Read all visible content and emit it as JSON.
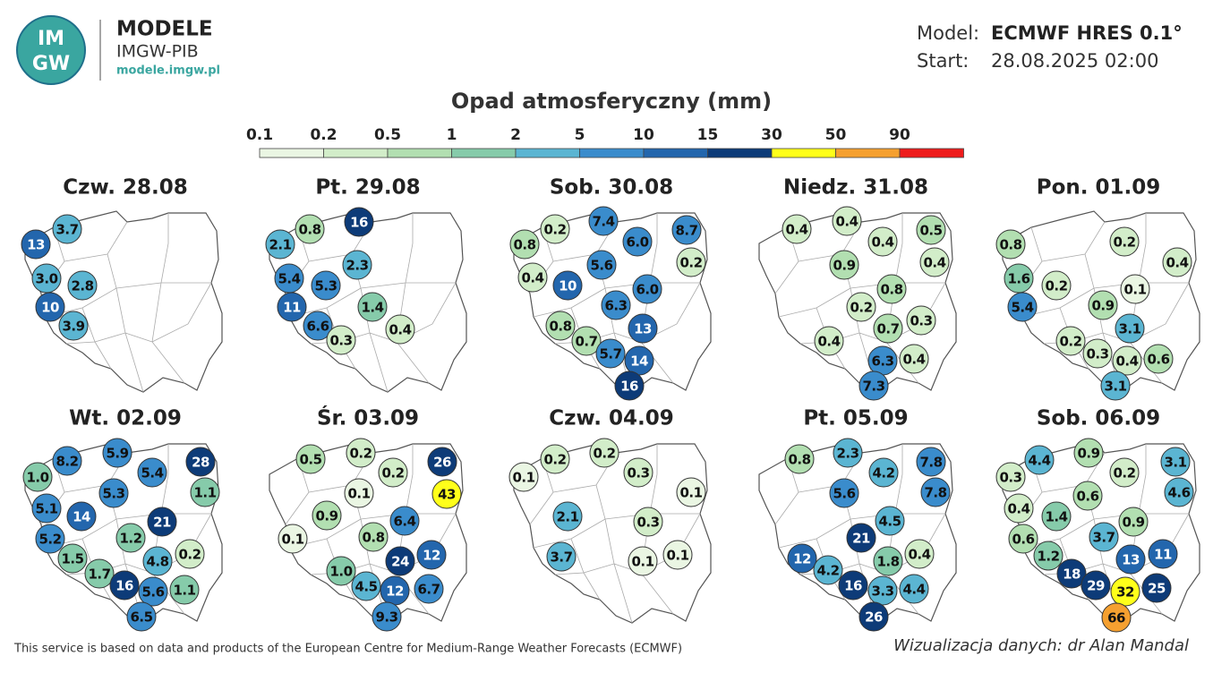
{
  "header": {
    "logo_text": [
      "IM",
      "GW"
    ],
    "brand": "MODELE",
    "org": "IMGW-PIB",
    "url": "modele.imgw.pl"
  },
  "model": {
    "model_label": "Model:",
    "model": "ECMWF HRES 0.1°",
    "start_label": "Start:",
    "start": "28.08.2025 02:00"
  },
  "title": "Opad atmosferyczny (mm)",
  "legend": {
    "ticks": [
      0.1,
      0.2,
      0.5,
      1,
      2,
      5,
      10,
      15,
      30,
      50,
      90
    ],
    "colors": [
      "#eaf6e3",
      "#d2edc9",
      "#b2dfb1",
      "#86cbaa",
      "#5bb5d2",
      "#3a8ccc",
      "#2366ad",
      "#0d3b78",
      "#ffff1a",
      "#f5a030",
      "#ee1c1c"
    ]
  },
  "panels": [
    {
      "title": "Czw. 28.08",
      "values": [
        13,
        3.7,
        3,
        2.8,
        10,
        3.9
      ],
      "value_labels": [
        "13",
        "3.7",
        "3.0",
        "2.8",
        "10",
        "3.9"
      ]
    },
    {
      "title": "Pt. 29.08",
      "values": [
        0.8,
        16,
        2.1,
        5.4,
        2.3,
        5.3,
        11,
        1.4,
        6.6,
        0.3,
        0.4
      ],
      "value_labels": [
        "0.8",
        "16",
        "2.1",
        "5.4",
        "2.3",
        "5.3",
        "11",
        "1.4",
        "6.6",
        "0.3",
        "0.4"
      ]
    },
    {
      "title": "Sob. 30.08",
      "values": [
        0.2,
        7.4,
        8.7,
        0.8,
        6,
        5.6,
        0.2,
        0.4,
        10,
        6,
        6.3,
        13,
        0.8,
        0.7,
        5.7,
        14,
        16
      ],
      "value_labels": [
        "0.2",
        "7.4",
        "8.7",
        "0.8",
        "6.0",
        "5.6",
        "0.2",
        "0.4",
        "10",
        "6.0",
        "6.3",
        "13",
        "0.8",
        "0.7",
        "5.7",
        "14",
        "16"
      ]
    },
    {
      "title": "Niedz. 31.08",
      "values": [
        0.4,
        0.4,
        0.5,
        0.4,
        0.4,
        0.9,
        0.8,
        0.2,
        0.7,
        0.3,
        0.4,
        6.3,
        0.4,
        7.3
      ],
      "value_labels": [
        "0.4",
        "0.4",
        "0.5",
        "0.4",
        "0.4",
        "0.9",
        "0.8",
        "0.2",
        "0.7",
        "0.3",
        "0.4",
        "6.3",
        "0.4",
        "7.3"
      ]
    },
    {
      "title": "Pon. 01.09",
      "values": [
        0.8,
        0.2,
        0.4,
        1.6,
        0.2,
        0.1,
        5.4,
        0.9,
        3.1,
        0.2,
        0.3,
        0.4,
        0.6,
        3.1
      ],
      "value_labels": [
        "0.8",
        "0.2",
        "0.4",
        "1.6",
        "0.2",
        "0.1",
        "5.4",
        "0.9",
        "3.1",
        "0.2",
        "0.3",
        "0.4",
        "0.6",
        "3.1"
      ]
    },
    {
      "title": "Wt. 02.09",
      "values": [
        8.2,
        5.9,
        28,
        1,
        5.4,
        5.3,
        1.1,
        5.1,
        14,
        21,
        5.2,
        1.2,
        4.8,
        0.2,
        1.5,
        1.7,
        16,
        5.6,
        1.1,
        6.5
      ],
      "value_labels": [
        "8.2",
        "5.9",
        "28",
        "1.0",
        "5.4",
        "5.3",
        "1.1",
        "5.1",
        "14",
        "21",
        "5.2",
        "1.2",
        "4.8",
        "0.2",
        "1.5",
        "1.7",
        "16",
        "5.6",
        "1.1",
        "6.5"
      ]
    },
    {
      "title": "Śr. 03.09",
      "values": [
        0.5,
        0.2,
        26,
        0.2,
        43,
        0.1,
        0.9,
        6.4,
        0.1,
        0.8,
        12,
        24,
        1,
        4.5,
        12,
        6.7,
        9.3
      ],
      "value_labels": [
        "0.5",
        "0.2",
        "26",
        "0.2",
        "43",
        "0.1",
        "0.9",
        "6.4",
        "0.1",
        "0.8",
        "12",
        "24",
        "1.0",
        "4.5",
        "12",
        "6.7",
        "9.3"
      ]
    },
    {
      "title": "Czw. 04.09",
      "values": [
        0.2,
        0.2,
        0.1,
        0.3,
        0.1,
        2.1,
        0.3,
        3.7,
        0.1,
        0.1
      ],
      "value_labels": [
        "0.2",
        "0.2",
        "0.1",
        "0.3",
        "0.1",
        "2.1",
        "0.3",
        "3.7",
        "0.1",
        "0.1"
      ]
    },
    {
      "title": "Pt. 05.09",
      "values": [
        0.8,
        2.3,
        7.8,
        4.2,
        7.8,
        5.6,
        4.5,
        21,
        12,
        4.2,
        1.8,
        0.4,
        16,
        3.3,
        4.4,
        26
      ],
      "value_labels": [
        "0.8",
        "2.3",
        "7.8",
        "4.2",
        "7.8",
        "5.6",
        "4.5",
        "21",
        "12",
        "4.2",
        "1.8",
        "0.4",
        "16",
        "3.3",
        "4.4",
        "26"
      ]
    },
    {
      "title": "Sob. 06.09",
      "values": [
        4.4,
        0.9,
        3.1,
        0.3,
        0.2,
        4.6,
        0.6,
        0.4,
        1.4,
        0.9,
        0.6,
        3.7,
        1.2,
        13,
        11,
        18,
        29,
        32,
        25,
        66
      ],
      "value_labels": [
        "4.4",
        "0.9",
        "3.1",
        "0.3",
        "0.2",
        "4.6",
        "0.6",
        "0.4",
        "1.4",
        "0.9",
        "0.6",
        "3.7",
        "1.2",
        "13",
        "11",
        "18",
        "29",
        "32",
        "25",
        "66"
      ]
    }
  ],
  "footer": {
    "credit": "This service is based on data and products of the European Centre for Medium-Range Weather Forecasts (ECMWF)",
    "author": "Wizualizacja danych: dr Alan Mandal"
  }
}
